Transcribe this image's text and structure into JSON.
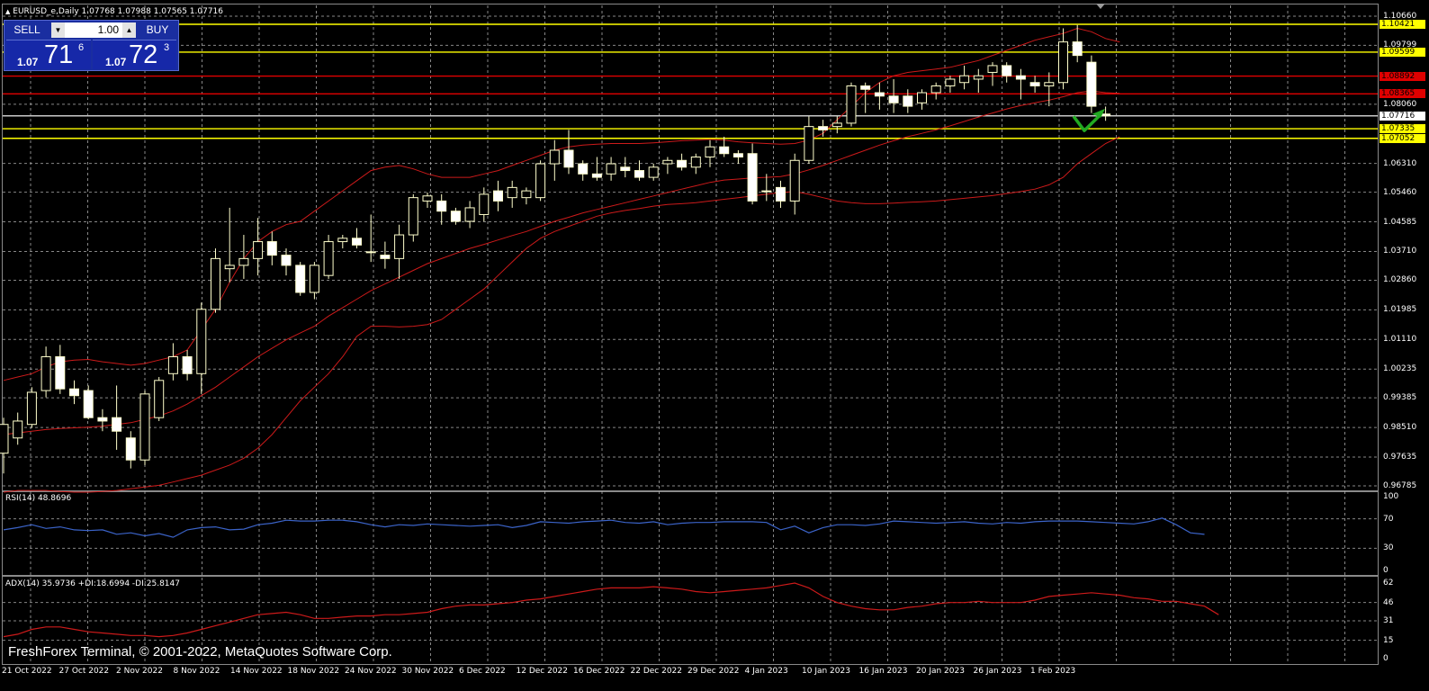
{
  "window": {
    "symbol_line": "EURUSD_e,Daily  1.07768 1.07988 1.07565 1.07716"
  },
  "trade_panel": {
    "sell_label": "SELL",
    "buy_label": "BUY",
    "lot_value": "1.00",
    "sell_prefix": "1.07",
    "sell_big": "71",
    "sell_sup": "6",
    "buy_prefix": "1.07",
    "buy_big": "72",
    "buy_sup": "3"
  },
  "price_axis": {
    "ticks": [
      "1.10660",
      "1.09799",
      "1.08060",
      "1.06310",
      "1.05460",
      "1.04585",
      "1.03710",
      "1.02860",
      "1.01985",
      "1.01110",
      "1.00235",
      "0.99385",
      "0.98510",
      "0.97635",
      "0.96785"
    ],
    "tick_values": [
      1.1066,
      1.09799,
      1.0806,
      1.0631,
      1.0546,
      1.04585,
      1.0371,
      1.0286,
      1.01985,
      1.0111,
      1.00235,
      0.99385,
      0.9851,
      0.97635,
      0.96785
    ],
    "tags": [
      {
        "text": "1.10421",
        "value": 1.10421,
        "bg": "#ffff00",
        "fg": "#000000"
      },
      {
        "text": "1.09599",
        "value": 1.09599,
        "bg": "#ffff00",
        "fg": "#000000"
      },
      {
        "text": "1.08892",
        "value": 1.08892,
        "bg": "#e00000",
        "fg": "#000000"
      },
      {
        "text": "1.08365",
        "value": 1.08365,
        "bg": "#e00000",
        "fg": "#000000"
      },
      {
        "text": "1.07716",
        "value": 1.07716,
        "bg": "#ffffff",
        "fg": "#000000"
      },
      {
        "text": "1.07335",
        "value": 1.07335,
        "bg": "#ffff00",
        "fg": "#000000"
      },
      {
        "text": "1.07052",
        "value": 1.07052,
        "bg": "#ffff00",
        "fg": "#000000"
      }
    ]
  },
  "horizontal_lines": [
    {
      "value": 1.10421,
      "color": "#ffff00"
    },
    {
      "value": 1.09599,
      "color": "#ffff00"
    },
    {
      "value": 1.08892,
      "color": "#e00000"
    },
    {
      "value": 1.08365,
      "color": "#e00000"
    },
    {
      "value": 1.07716,
      "color": "#c8c8c8"
    },
    {
      "value": 1.07335,
      "color": "#ffff00"
    },
    {
      "value": 1.07052,
      "color": "#ffff00"
    }
  ],
  "rsi": {
    "label": "RSI(14) 48.8696",
    "levels": [
      "100",
      "70",
      "30",
      "0"
    ],
    "level_values": [
      100,
      70,
      30,
      0
    ],
    "values": [
      55,
      58,
      62,
      57,
      59,
      55,
      54,
      55,
      49,
      51,
      47,
      50,
      45,
      55,
      58,
      59,
      55,
      56,
      62,
      64,
      68,
      67,
      67,
      68,
      68,
      66,
      62,
      59,
      62,
      61,
      63,
      62,
      61,
      60,
      61,
      62,
      58,
      61,
      66,
      65,
      64,
      66,
      67,
      68,
      65,
      64,
      66,
      62,
      64,
      65,
      65,
      66,
      66,
      66,
      65,
      55,
      60,
      51,
      58,
      62,
      62,
      61,
      63,
      67,
      66,
      65,
      64,
      65,
      66,
      64,
      63,
      65,
      64,
      66,
      67,
      67,
      67,
      66,
      65,
      64,
      63,
      66,
      71,
      62,
      51,
      48.87
    ]
  },
  "adx": {
    "label": "ADX(14) 35.9736 +DI:18.6994 -DI:25.8147",
    "levels": [
      "62",
      "46",
      "31",
      "15",
      "0"
    ],
    "level_values": [
      62,
      46,
      31,
      15,
      0
    ],
    "values": [
      18,
      20,
      24,
      26,
      26,
      24,
      22,
      21,
      20,
      19,
      19,
      18,
      19,
      21,
      24,
      27,
      30,
      33,
      36,
      37,
      38,
      36,
      33,
      33,
      34,
      35,
      35,
      36,
      36,
      37,
      38,
      41,
      43,
      44,
      44,
      45,
      46,
      48,
      49,
      51,
      53,
      55,
      57,
      58,
      58,
      58,
      59,
      58,
      57,
      55,
      54,
      55,
      56,
      57,
      58,
      60,
      62,
      58,
      51,
      46,
      43,
      41,
      40,
      40,
      42,
      43,
      45,
      46,
      46,
      47,
      46,
      46,
      46,
      48,
      51,
      52,
      53,
      54,
      53,
      52,
      50,
      49,
      47,
      47,
      45,
      43,
      36
    ]
  },
  "x_axis": {
    "labels": [
      "21 Oct 2022",
      "27 Oct 2022",
      "2 Nov 2022",
      "8 Nov 2022",
      "14 Nov 2022",
      "18 Nov 2022",
      "24 Nov 2022",
      "30 Nov 2022",
      "6 Dec 2022",
      "12 Dec 2022",
      "16 Dec 2022",
      "22 Dec 2022",
      "29 Dec 2022",
      "4 Jan 2023",
      "10 Jan 2023",
      "16 Jan 2023",
      "20 Jan 2023",
      "26 Jan 2023",
      "1 Feb 2023"
    ]
  },
  "copyright": "FreshForex Terminal, © 2001-2022, MetaQuotes Software Corp.",
  "colors": {
    "bull_candle": "#ffffcc",
    "bear_candle": "#ffffff",
    "wick": "#ffffcc",
    "bollinger": "#cc1a1a",
    "grid": "#b4b4b4",
    "rsi_line": "#3b63c8",
    "adx_line": "#cc1a1a",
    "arrow": "#22aa22"
  },
  "chart_data": {
    "type": "candlestick",
    "title": "EURUSD_e,Daily",
    "ylim": [
      0.96785,
      1.1066
    ],
    "candles": [
      {
        "o": 0.9775,
        "h": 0.988,
        "l": 0.9715,
        "c": 0.986
      },
      {
        "o": 0.982,
        "h": 0.9895,
        "l": 0.98,
        "c": 0.987
      },
      {
        "o": 0.986,
        "h": 0.997,
        "l": 0.985,
        "c": 0.9955
      },
      {
        "o": 0.996,
        "h": 1.009,
        "l": 0.994,
        "c": 1.006
      },
      {
        "o": 1.006,
        "h": 1.0095,
        "l": 0.995,
        "c": 0.9965
      },
      {
        "o": 0.9965,
        "h": 0.999,
        "l": 0.992,
        "c": 0.9945
      },
      {
        "o": 0.996,
        "h": 0.9975,
        "l": 0.9875,
        "c": 0.988
      },
      {
        "o": 0.988,
        "h": 0.9905,
        "l": 0.984,
        "c": 0.987
      },
      {
        "o": 0.988,
        "h": 0.9975,
        "l": 0.9785,
        "c": 0.984
      },
      {
        "o": 0.982,
        "h": 0.984,
        "l": 0.973,
        "c": 0.9755
      },
      {
        "o": 0.9755,
        "h": 0.996,
        "l": 0.974,
        "c": 0.995
      },
      {
        "o": 0.988,
        "h": 1.0,
        "l": 0.987,
        "c": 0.999
      },
      {
        "o": 1.001,
        "h": 1.01,
        "l": 0.999,
        "c": 1.006
      },
      {
        "o": 1.006,
        "h": 1.008,
        "l": 0.999,
        "c": 1.001
      },
      {
        "o": 1.001,
        "h": 1.022,
        "l": 0.995,
        "c": 1.02
      },
      {
        "o": 1.02,
        "h": 1.038,
        "l": 1.019,
        "c": 1.035
      },
      {
        "o": 1.032,
        "h": 1.05,
        "l": 1.028,
        "c": 1.033
      },
      {
        "o": 1.033,
        "h": 1.042,
        "l": 1.029,
        "c": 1.035
      },
      {
        "o": 1.035,
        "h": 1.047,
        "l": 1.03,
        "c": 1.04
      },
      {
        "o": 1.04,
        "h": 1.043,
        "l": 1.033,
        "c": 1.036
      },
      {
        "o": 1.036,
        "h": 1.038,
        "l": 1.03,
        "c": 1.033
      },
      {
        "o": 1.033,
        "h": 1.034,
        "l": 1.024,
        "c": 1.025
      },
      {
        "o": 1.025,
        "h": 1.034,
        "l": 1.023,
        "c": 1.033
      },
      {
        "o": 1.03,
        "h": 1.042,
        "l": 1.029,
        "c": 1.04
      },
      {
        "o": 1.04,
        "h": 1.042,
        "l": 1.038,
        "c": 1.041
      },
      {
        "o": 1.041,
        "h": 1.044,
        "l": 1.038,
        "c": 1.039
      },
      {
        "o": 1.037,
        "h": 1.048,
        "l": 1.034,
        "c": 1.037
      },
      {
        "o": 1.036,
        "h": 1.04,
        "l": 1.032,
        "c": 1.035
      },
      {
        "o": 1.035,
        "h": 1.045,
        "l": 1.029,
        "c": 1.042
      },
      {
        "o": 1.042,
        "h": 1.054,
        "l": 1.04,
        "c": 1.053
      },
      {
        "o": 1.052,
        "h": 1.0545,
        "l": 1.05,
        "c": 1.0535
      },
      {
        "o": 1.052,
        "h": 1.054,
        "l": 1.045,
        "c": 1.049
      },
      {
        "o": 1.049,
        "h": 1.05,
        "l": 1.045,
        "c": 1.046
      },
      {
        "o": 1.046,
        "h": 1.052,
        "l": 1.044,
        "c": 1.05
      },
      {
        "o": 1.048,
        "h": 1.056,
        "l": 1.046,
        "c": 1.054
      },
      {
        "o": 1.055,
        "h": 1.058,
        "l": 1.049,
        "c": 1.052
      },
      {
        "o": 1.053,
        "h": 1.058,
        "l": 1.05,
        "c": 1.056
      },
      {
        "o": 1.053,
        "h": 1.056,
        "l": 1.051,
        "c": 1.055
      },
      {
        "o": 1.053,
        "h": 1.064,
        "l": 1.052,
        "c": 1.063
      },
      {
        "o": 1.063,
        "h": 1.07,
        "l": 1.058,
        "c": 1.067
      },
      {
        "o": 1.067,
        "h": 1.073,
        "l": 1.06,
        "c": 1.062
      },
      {
        "o": 1.063,
        "h": 1.064,
        "l": 1.058,
        "c": 1.06
      },
      {
        "o": 1.06,
        "h": 1.065,
        "l": 1.058,
        "c": 1.059
      },
      {
        "o": 1.06,
        "h": 1.065,
        "l": 1.058,
        "c": 1.063
      },
      {
        "o": 1.062,
        "h": 1.065,
        "l": 1.059,
        "c": 1.061
      },
      {
        "o": 1.061,
        "h": 1.064,
        "l": 1.058,
        "c": 1.059
      },
      {
        "o": 1.059,
        "h": 1.063,
        "l": 1.058,
        "c": 1.062
      },
      {
        "o": 1.063,
        "h": 1.065,
        "l": 1.06,
        "c": 1.064
      },
      {
        "o": 1.064,
        "h": 1.066,
        "l": 1.061,
        "c": 1.062
      },
      {
        "o": 1.062,
        "h": 1.066,
        "l": 1.06,
        "c": 1.065
      },
      {
        "o": 1.065,
        "h": 1.07,
        "l": 1.062,
        "c": 1.068
      },
      {
        "o": 1.068,
        "h": 1.071,
        "l": 1.065,
        "c": 1.066
      },
      {
        "o": 1.066,
        "h": 1.067,
        "l": 1.063,
        "c": 1.065
      },
      {
        "o": 1.066,
        "h": 1.069,
        "l": 1.051,
        "c": 1.052
      },
      {
        "o": 1.055,
        "h": 1.06,
        "l": 1.052,
        "c": 1.055
      },
      {
        "o": 1.056,
        "h": 1.058,
        "l": 1.05,
        "c": 1.052
      },
      {
        "o": 1.052,
        "h": 1.066,
        "l": 1.048,
        "c": 1.064
      },
      {
        "o": 1.064,
        "h": 1.077,
        "l": 1.063,
        "c": 1.074
      },
      {
        "o": 1.074,
        "h": 1.076,
        "l": 1.071,
        "c": 1.073
      },
      {
        "o": 1.074,
        "h": 1.077,
        "l": 1.072,
        "c": 1.075
      },
      {
        "o": 1.075,
        "h": 1.087,
        "l": 1.074,
        "c": 1.086
      },
      {
        "o": 1.086,
        "h": 1.087,
        "l": 1.078,
        "c": 1.085
      },
      {
        "o": 1.084,
        "h": 1.087,
        "l": 1.079,
        "c": 1.083
      },
      {
        "o": 1.083,
        "h": 1.088,
        "l": 1.078,
        "c": 1.081
      },
      {
        "o": 1.083,
        "h": 1.085,
        "l": 1.078,
        "c": 1.08
      },
      {
        "o": 1.081,
        "h": 1.085,
        "l": 1.079,
        "c": 1.084
      },
      {
        "o": 1.084,
        "h": 1.087,
        "l": 1.082,
        "c": 1.086
      },
      {
        "o": 1.086,
        "h": 1.089,
        "l": 1.084,
        "c": 1.088
      },
      {
        "o": 1.087,
        "h": 1.092,
        "l": 1.085,
        "c": 1.089
      },
      {
        "o": 1.088,
        "h": 1.091,
        "l": 1.084,
        "c": 1.089
      },
      {
        "o": 1.09,
        "h": 1.093,
        "l": 1.086,
        "c": 1.092
      },
      {
        "o": 1.092,
        "h": 1.093,
        "l": 1.087,
        "c": 1.089
      },
      {
        "o": 1.089,
        "h": 1.091,
        "l": 1.082,
        "c": 1.088
      },
      {
        "o": 1.087,
        "h": 1.089,
        "l": 1.084,
        "c": 1.086
      },
      {
        "o": 1.086,
        "h": 1.09,
        "l": 1.08,
        "c": 1.087
      },
      {
        "o": 1.087,
        "h": 1.103,
        "l": 1.085,
        "c": 1.099
      },
      {
        "o": 1.099,
        "h": 1.104,
        "l": 1.093,
        "c": 1.095
      },
      {
        "o": 1.093,
        "h": 1.095,
        "l": 1.078,
        "c": 1.08
      },
      {
        "o": 1.0777,
        "h": 1.0799,
        "l": 1.0757,
        "c": 1.0772
      }
    ],
    "bollinger_upper": [
      0.999,
      1.0,
      1.001,
      1.003,
      1.0045,
      1.005,
      1.0052,
      1.0045,
      1.004,
      1.0035,
      1.004,
      1.005,
      1.006,
      1.008,
      1.014,
      1.02,
      1.028,
      1.035,
      1.04,
      1.043,
      1.045,
      1.046,
      1.049,
      1.052,
      1.055,
      1.058,
      1.061,
      1.062,
      1.0625,
      1.0615,
      1.06,
      1.059,
      1.059,
      1.059,
      1.06,
      1.061,
      1.0625,
      1.064,
      1.0655,
      1.067,
      1.068,
      1.0685,
      1.0688,
      1.069,
      1.069,
      1.069,
      1.0692,
      1.0695,
      1.0698,
      1.07,
      1.0702,
      1.07,
      1.0695,
      1.0692,
      1.069,
      1.0688,
      1.069,
      1.07,
      1.072,
      1.076,
      1.08,
      1.084,
      1.087,
      1.089,
      1.09,
      1.0905,
      1.091,
      1.0915,
      1.0925,
      1.0935,
      1.095,
      1.0965,
      1.098,
      1.0995,
      1.1005,
      1.1015,
      1.103,
      1.102,
      1.1,
      1.099
    ],
    "bollinger_middle": [
      0.983,
      0.9835,
      0.984,
      0.9845,
      0.9848,
      0.985,
      0.9852,
      0.9855,
      0.986,
      0.9865,
      0.9875,
      0.9885,
      0.99,
      0.992,
      0.9945,
      0.997,
      1.0,
      1.003,
      1.006,
      1.0085,
      1.011,
      1.013,
      1.015,
      1.018,
      1.0205,
      1.023,
      1.0255,
      1.0275,
      1.0295,
      1.0315,
      1.0335,
      1.035,
      1.0365,
      1.038,
      1.0392,
      1.0405,
      1.0418,
      1.043,
      1.0445,
      1.046,
      1.0472,
      1.0485,
      1.0495,
      1.0505,
      1.0515,
      1.0525,
      1.0535,
      1.0545,
      1.0555,
      1.0565,
      1.0575,
      1.0582,
      1.0585,
      1.0588,
      1.059,
      1.0592,
      1.06,
      1.0612,
      1.0625,
      1.064,
      1.0655,
      1.067,
      1.0685,
      1.0698,
      1.071,
      1.072,
      1.073,
      1.0742,
      1.0755,
      1.0768,
      1.078,
      1.0792,
      1.0802,
      1.081,
      1.0818,
      1.0828,
      1.084,
      1.0845,
      1.084,
      1.0838
    ],
    "bollinger_lower": [
      0.966,
      0.9665,
      0.9665,
      0.9665,
      0.9662,
      0.966,
      0.966,
      0.9662,
      0.9665,
      0.967,
      0.9675,
      0.968,
      0.969,
      0.97,
      0.971,
      0.9725,
      0.974,
      0.976,
      0.979,
      0.983,
      0.988,
      0.993,
      0.997,
      1.001,
      1.006,
      1.012,
      1.015,
      1.015,
      1.0148,
      1.015,
      1.0155,
      1.017,
      1.02,
      1.023,
      1.026,
      1.03,
      1.034,
      1.038,
      1.041,
      1.043,
      1.0445,
      1.046,
      1.0475,
      1.0485,
      1.0492,
      1.0498,
      1.0505,
      1.051,
      1.0512,
      1.0515,
      1.052,
      1.0525,
      1.053,
      1.0535,
      1.054,
      1.0545,
      1.0548,
      1.054,
      1.053,
      1.052,
      1.0515,
      1.0512,
      1.0512,
      1.0514,
      1.0516,
      1.0518,
      1.052,
      1.0524,
      1.0528,
      1.0532,
      1.0536,
      1.0542,
      1.0548,
      1.0555,
      1.0568,
      1.059,
      1.063,
      1.066,
      1.069,
      1.071
    ]
  }
}
